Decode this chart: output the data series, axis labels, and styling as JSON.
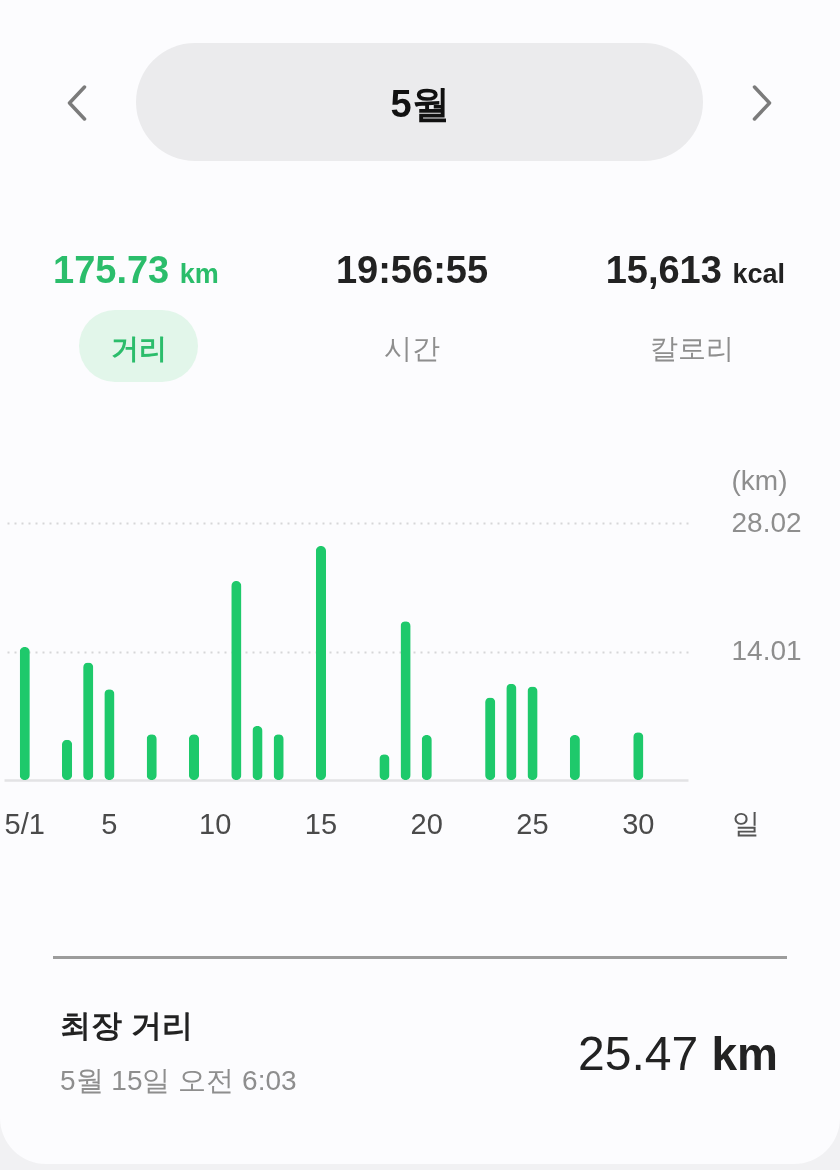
{
  "chart_data": {
    "type": "bar",
    "title": "5월",
    "categories": [
      "5/1",
      null,
      null,
      null,
      "5",
      null,
      null,
      null,
      null,
      "10",
      null,
      null,
      null,
      null,
      "15",
      null,
      null,
      null,
      null,
      "20",
      null,
      null,
      null,
      null,
      "25",
      null,
      null,
      null,
      null,
      "30",
      null
    ],
    "values": [
      14.5,
      null,
      4.4,
      12.8,
      9.9,
      null,
      5.0,
      null,
      5.0,
      null,
      21.7,
      5.9,
      5.0,
      null,
      25.5,
      null,
      null,
      2.8,
      17.3,
      4.9,
      null,
      null,
      9.0,
      10.5,
      10.2,
      null,
      4.9,
      null,
      null,
      5.2,
      null
    ],
    "color": "#1ec96b",
    "ylim": [
      0,
      28.02
    ],
    "yticks": [
      14.01,
      28.02
    ],
    "xlabel": "일",
    "ylabel": "(km)",
    "grid": "y",
    "annotations": [
      "175.73 km",
      "19:56:55",
      "15,613 kcal",
      "거리",
      "시간",
      "칼로리",
      "최장 거리",
      "5월 15일 오전 6:03",
      "25.47 km"
    ]
  }
}
